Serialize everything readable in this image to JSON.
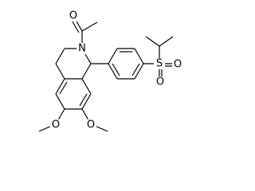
{
  "atoms": [
    {
      "label": "O"
    },
    {
      "label": "N"
    },
    {
      "label": "S"
    },
    {
      "label": "O"
    },
    {
      "label": "O"
    },
    {
      "label": "O"
    },
    {
      "label": "O"
    }
  ]
}
